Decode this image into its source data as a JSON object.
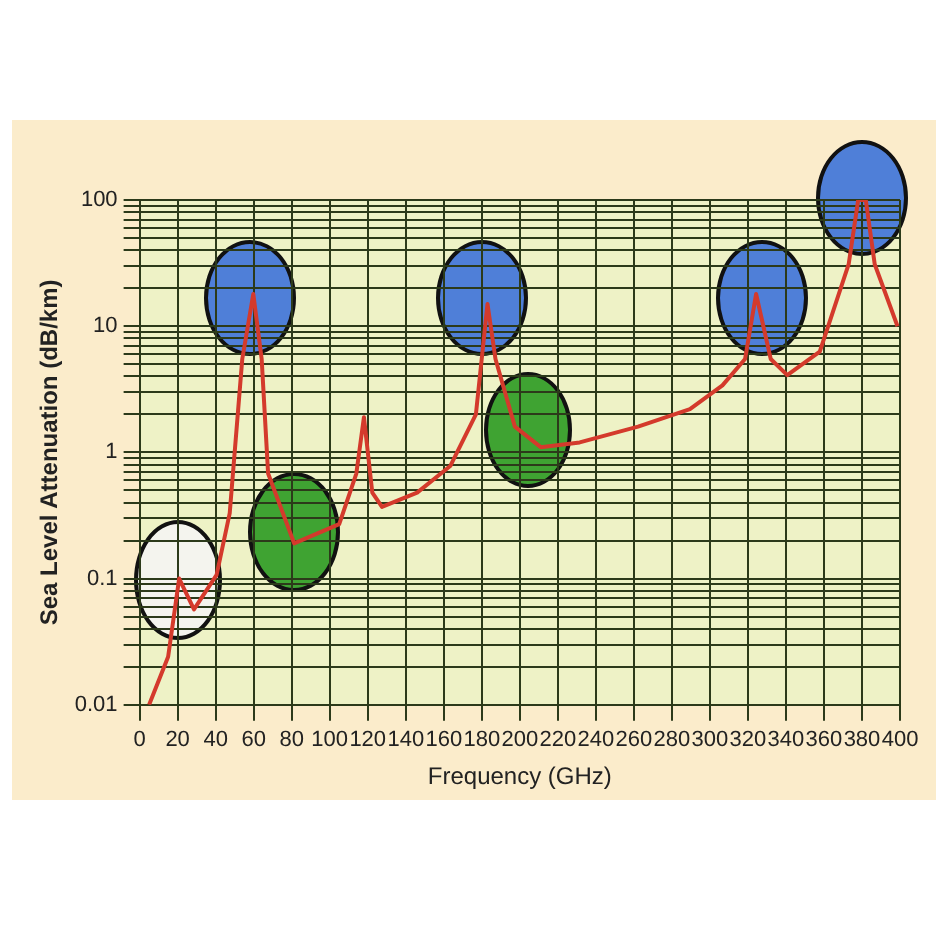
{
  "chart_data": {
    "type": "line",
    "xlabel": "Frequency (GHz)",
    "ylabel": "Sea Level Attenuation (dB/km)",
    "log": "y",
    "grid": true,
    "legend": false,
    "marker": "none",
    "line_style": "solid",
    "x": [
      5,
      15,
      20.8,
      28.6,
      40.5,
      47.4,
      54,
      59.8,
      64.2,
      67.6,
      81.3,
      105,
      114,
      118,
      122.4,
      127.5,
      146,
      163.4,
      176.9,
      183,
      187.2,
      197.4,
      211,
      231.5,
      262.2,
      289.5,
      306.6,
      318.5,
      324.3,
      332,
      340.7,
      357.8,
      373,
      378,
      382,
      386.7,
      398.7
    ],
    "series": [
      {
        "color": "#d43a2c",
        "values": [
          0.01,
          0.024,
          0.1,
          0.057,
          0.107,
          0.33,
          5.5,
          18,
          5.5,
          0.68,
          0.19,
          0.27,
          0.68,
          1.9,
          0.48,
          0.37,
          0.48,
          0.78,
          2,
          15,
          5.5,
          1.6,
          1.1,
          1.2,
          1.6,
          2.2,
          3.4,
          5.5,
          18,
          5.5,
          4.1,
          6.3,
          31,
          100,
          100,
          31,
          10
        ]
      }
    ],
    "xlim": [
      0,
      400
    ],
    "xticks": [
      0,
      20,
      40,
      60,
      80,
      100,
      120,
      140,
      160,
      180,
      200,
      220,
      240,
      260,
      280,
      300,
      320,
      340,
      360,
      380,
      400
    ],
    "ylim": [
      0.01,
      100
    ],
    "yticks": [
      0.01,
      {
        "value": 0.02,
        "label": null
      },
      {
        "value": 0.03,
        "label": null
      },
      {
        "value": 0.04,
        "label": null
      },
      {
        "value": 0.05,
        "label": null
      },
      {
        "value": 0.06,
        "label": null
      },
      {
        "value": 0.07,
        "label": null
      },
      {
        "value": 0.08,
        "label": null
      },
      {
        "value": 0.09,
        "label": null
      },
      0.1,
      {
        "value": 0.2,
        "label": null
      },
      {
        "value": 0.3,
        "label": null
      },
      {
        "value": 0.4,
        "label": null
      },
      {
        "value": 0.5,
        "label": null
      },
      {
        "value": 0.6,
        "label": null
      },
      {
        "value": 0.7,
        "label": null
      },
      {
        "value": 0.8,
        "label": null
      },
      {
        "value": 0.9,
        "label": null
      },
      1,
      {
        "value": 2,
        "label": null
      },
      {
        "value": 3,
        "label": null
      },
      {
        "value": 4,
        "label": null
      },
      {
        "value": 5,
        "label": null
      },
      {
        "value": 6,
        "label": null
      },
      {
        "value": 7,
        "label": null
      },
      {
        "value": 8,
        "label": null
      },
      {
        "value": 9,
        "label": null
      },
      10,
      {
        "value": 20,
        "label": null
      },
      {
        "value": 30,
        "label": null
      },
      {
        "value": 40,
        "label": null
      },
      {
        "value": 50,
        "label": null
      },
      {
        "value": 60,
        "label": null
      },
      {
        "value": 70,
        "label": null
      },
      {
        "value": 80,
        "label": null
      },
      {
        "value": 90,
        "label": null
      },
      100
    ]
  }
}
